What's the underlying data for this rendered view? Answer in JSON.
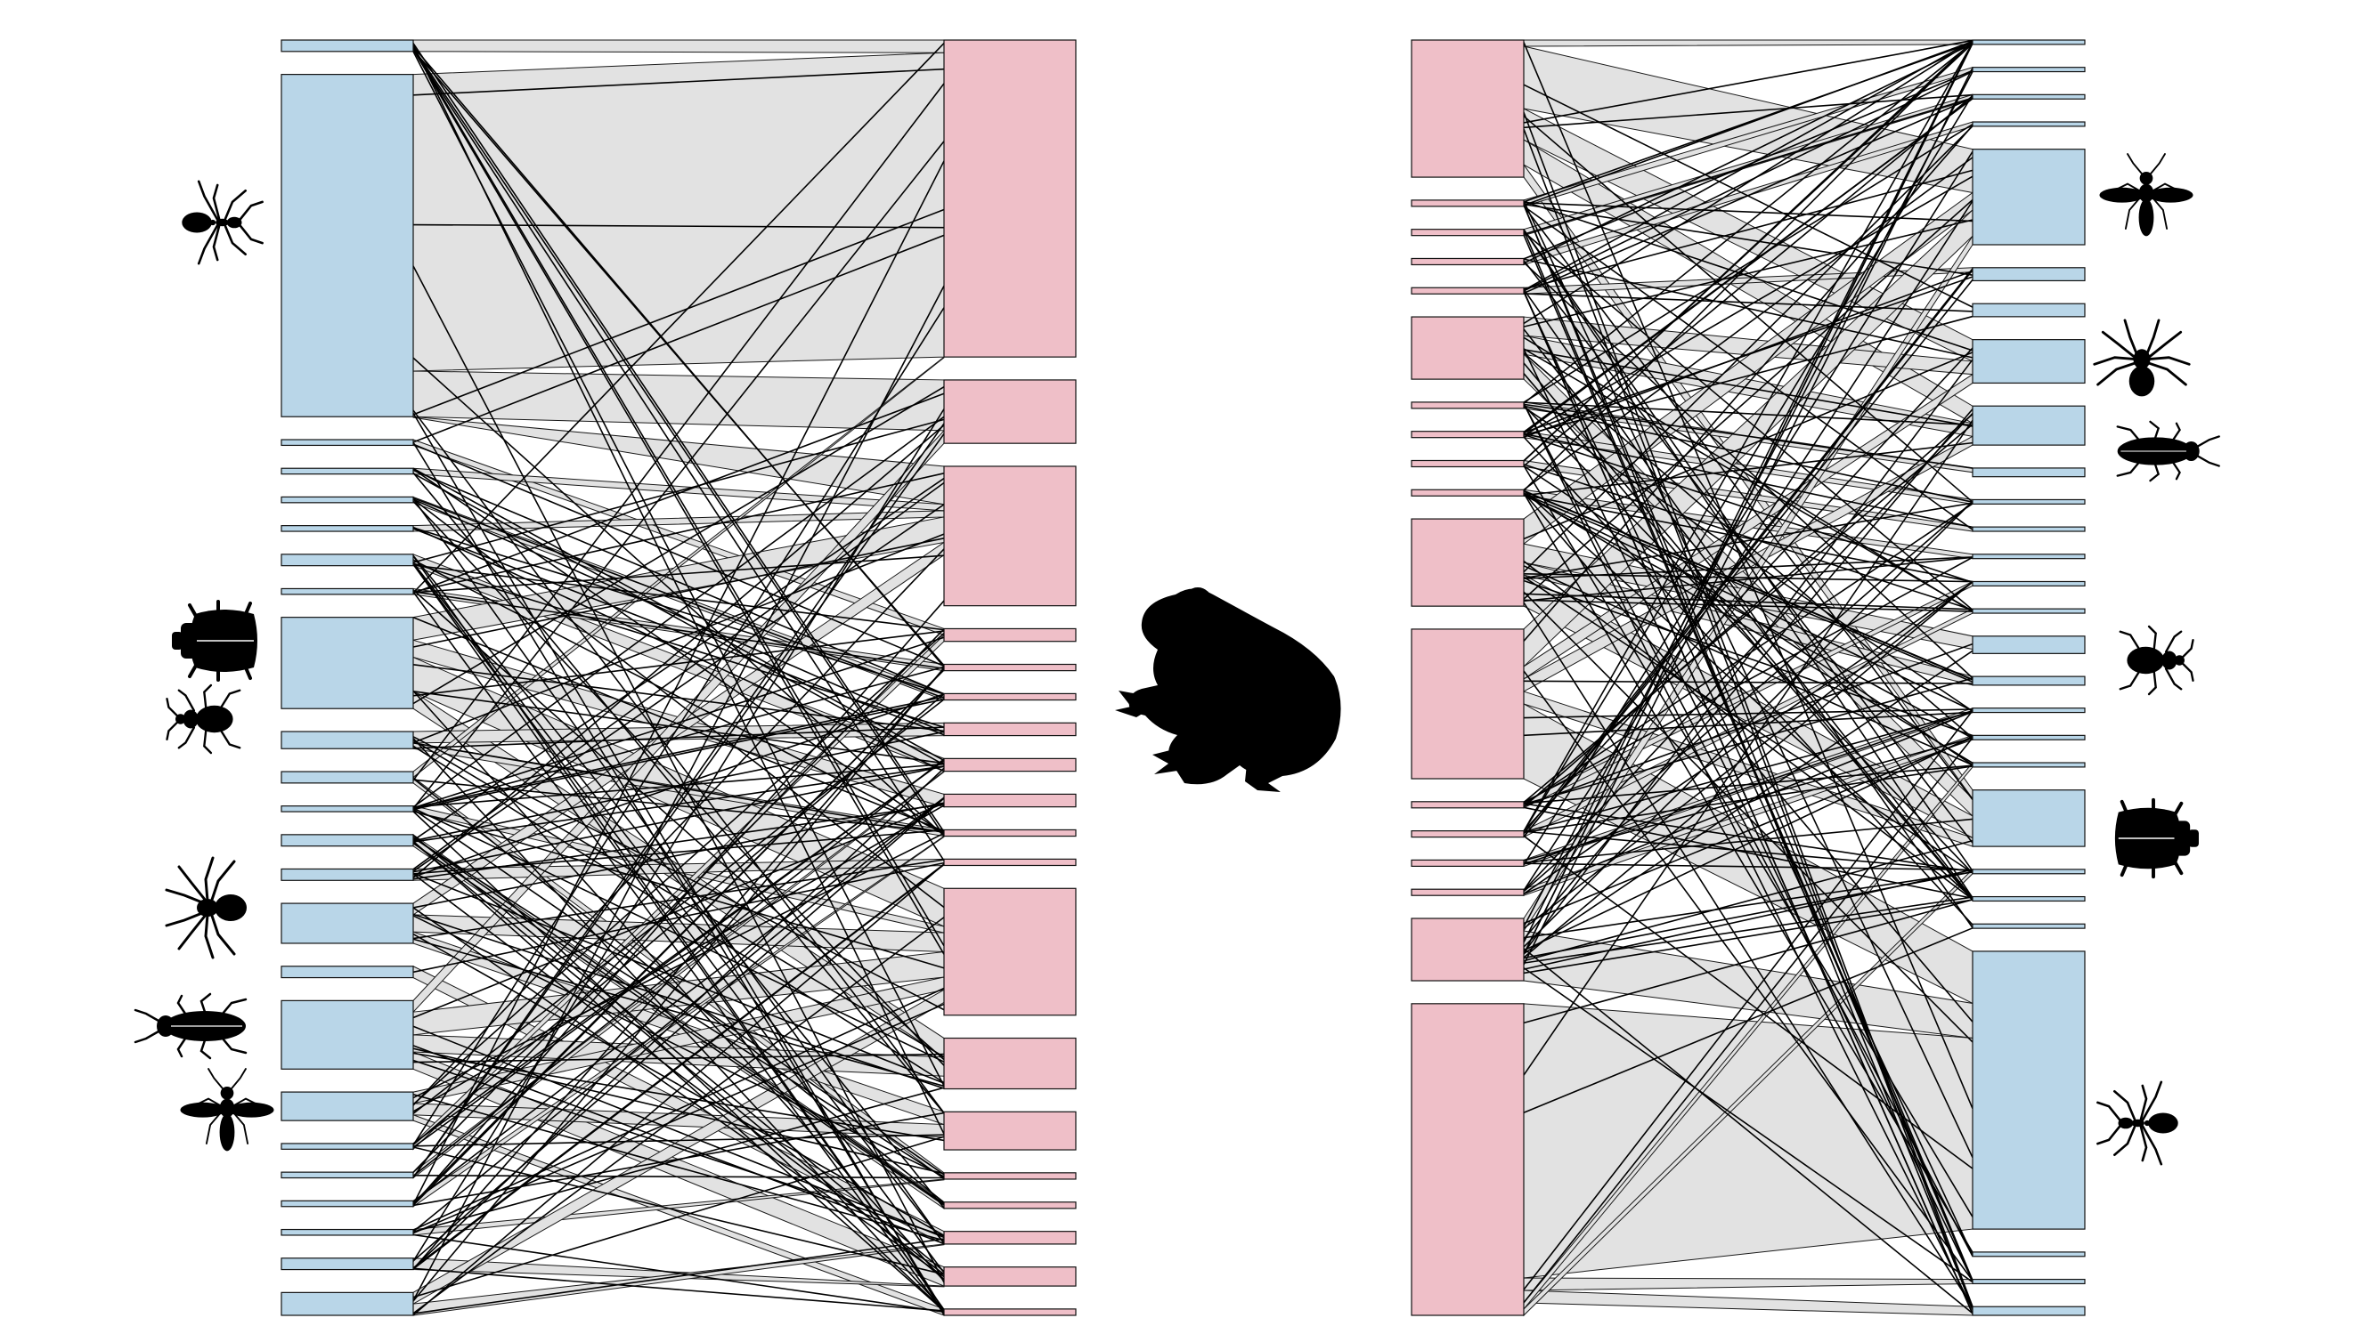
{
  "colors": {
    "background": "#ffffff",
    "prey_node": "#b9d6e8",
    "frog_node": "#efbfc8",
    "link_band": "#e2e2e2",
    "link_line": "#000000",
    "silhouette": "#000000"
  },
  "icons": {
    "left_network": [
      "ant-icon",
      "beetle-icon",
      "weevil-icon",
      "spider-icon",
      "cockroach-icon",
      "wasp-icon"
    ],
    "center": "frog-icon",
    "right_network": [
      "wasp-icon",
      "spider-icon",
      "cockroach-icon",
      "weevil-icon",
      "beetle-icon",
      "ant-icon"
    ]
  },
  "left_network": {
    "prey_weights": [
      2,
      60,
      1,
      1,
      1,
      1,
      2,
      1,
      16,
      3,
      2,
      1,
      2,
      2,
      7,
      2,
      12,
      5,
      1,
      1,
      1,
      1,
      2,
      4
    ],
    "frog_weights": [
      50,
      10,
      22,
      2,
      1,
      1,
      2,
      2,
      2,
      1,
      1,
      20,
      8,
      6,
      1,
      1,
      2,
      3,
      1
    ],
    "links": [
      [
        0,
        0,
        2
      ],
      [
        1,
        0,
        52
      ],
      [
        1,
        1,
        8
      ],
      [
        1,
        2,
        6
      ],
      [
        2,
        3,
        1
      ],
      [
        3,
        2,
        1
      ],
      [
        4,
        5,
        1
      ],
      [
        5,
        2,
        1
      ],
      [
        6,
        7,
        2
      ],
      [
        7,
        4,
        1
      ],
      [
        8,
        2,
        4
      ],
      [
        8,
        8,
        3
      ],
      [
        8,
        11,
        6
      ],
      [
        8,
        12,
        3
      ],
      [
        9,
        6,
        2
      ],
      [
        9,
        9,
        1
      ],
      [
        10,
        0,
        1
      ],
      [
        10,
        14,
        1
      ],
      [
        11,
        11,
        1
      ],
      [
        12,
        15,
        2
      ],
      [
        13,
        10,
        2
      ],
      [
        14,
        2,
        2
      ],
      [
        14,
        11,
        3
      ],
      [
        14,
        13,
        2
      ],
      [
        15,
        16,
        2
      ],
      [
        16,
        1,
        2
      ],
      [
        16,
        11,
        4
      ],
      [
        16,
        12,
        3
      ],
      [
        16,
        17,
        3
      ],
      [
        17,
        11,
        2
      ],
      [
        17,
        13,
        2
      ],
      [
        17,
        18,
        1
      ],
      [
        18,
        3,
        1
      ],
      [
        19,
        7,
        1
      ],
      [
        20,
        9,
        1
      ],
      [
        21,
        14,
        1
      ],
      [
        22,
        17,
        2
      ],
      [
        23,
        11,
        2
      ],
      [
        23,
        16,
        2
      ]
    ],
    "random_lines": 150,
    "seed": 11
  },
  "right_network": {
    "frog_weights": [
      22,
      1,
      1,
      1,
      1,
      10,
      1,
      1,
      1,
      1,
      14,
      24,
      1,
      1,
      1,
      1,
      10,
      50
    ],
    "prey_weights": [
      1,
      1,
      1,
      1,
      22,
      3,
      3,
      10,
      9,
      2,
      1,
      1,
      1,
      1,
      1,
      4,
      2,
      1,
      1,
      1,
      13,
      1,
      1,
      1,
      64,
      1,
      1,
      2
    ],
    "links": [
      [
        0,
        0,
        1
      ],
      [
        0,
        4,
        10
      ],
      [
        0,
        7,
        5
      ],
      [
        0,
        8,
        4
      ],
      [
        0,
        20,
        2
      ],
      [
        1,
        1,
        1
      ],
      [
        2,
        2,
        1
      ],
      [
        3,
        3,
        1
      ],
      [
        4,
        5,
        1
      ],
      [
        5,
        7,
        3
      ],
      [
        5,
        8,
        3
      ],
      [
        5,
        20,
        4
      ],
      [
        6,
        9,
        1
      ],
      [
        7,
        10,
        1
      ],
      [
        8,
        11,
        1
      ],
      [
        9,
        12,
        1
      ],
      [
        10,
        4,
        4
      ],
      [
        10,
        15,
        3
      ],
      [
        10,
        16,
        2
      ],
      [
        10,
        20,
        5
      ],
      [
        11,
        4,
        6
      ],
      [
        11,
        7,
        2
      ],
      [
        11,
        8,
        2
      ],
      [
        11,
        20,
        2
      ],
      [
        11,
        24,
        12
      ],
      [
        12,
        13,
        1
      ],
      [
        13,
        14,
        1
      ],
      [
        14,
        17,
        1
      ],
      [
        15,
        18,
        1
      ],
      [
        16,
        4,
        2
      ],
      [
        16,
        24,
        8
      ],
      [
        17,
        24,
        44
      ],
      [
        17,
        26,
        2
      ],
      [
        17,
        27,
        2
      ],
      [
        17,
        19,
        1
      ],
      [
        17,
        21,
        1
      ]
    ],
    "random_lines": 160,
    "seed": 29
  }
}
